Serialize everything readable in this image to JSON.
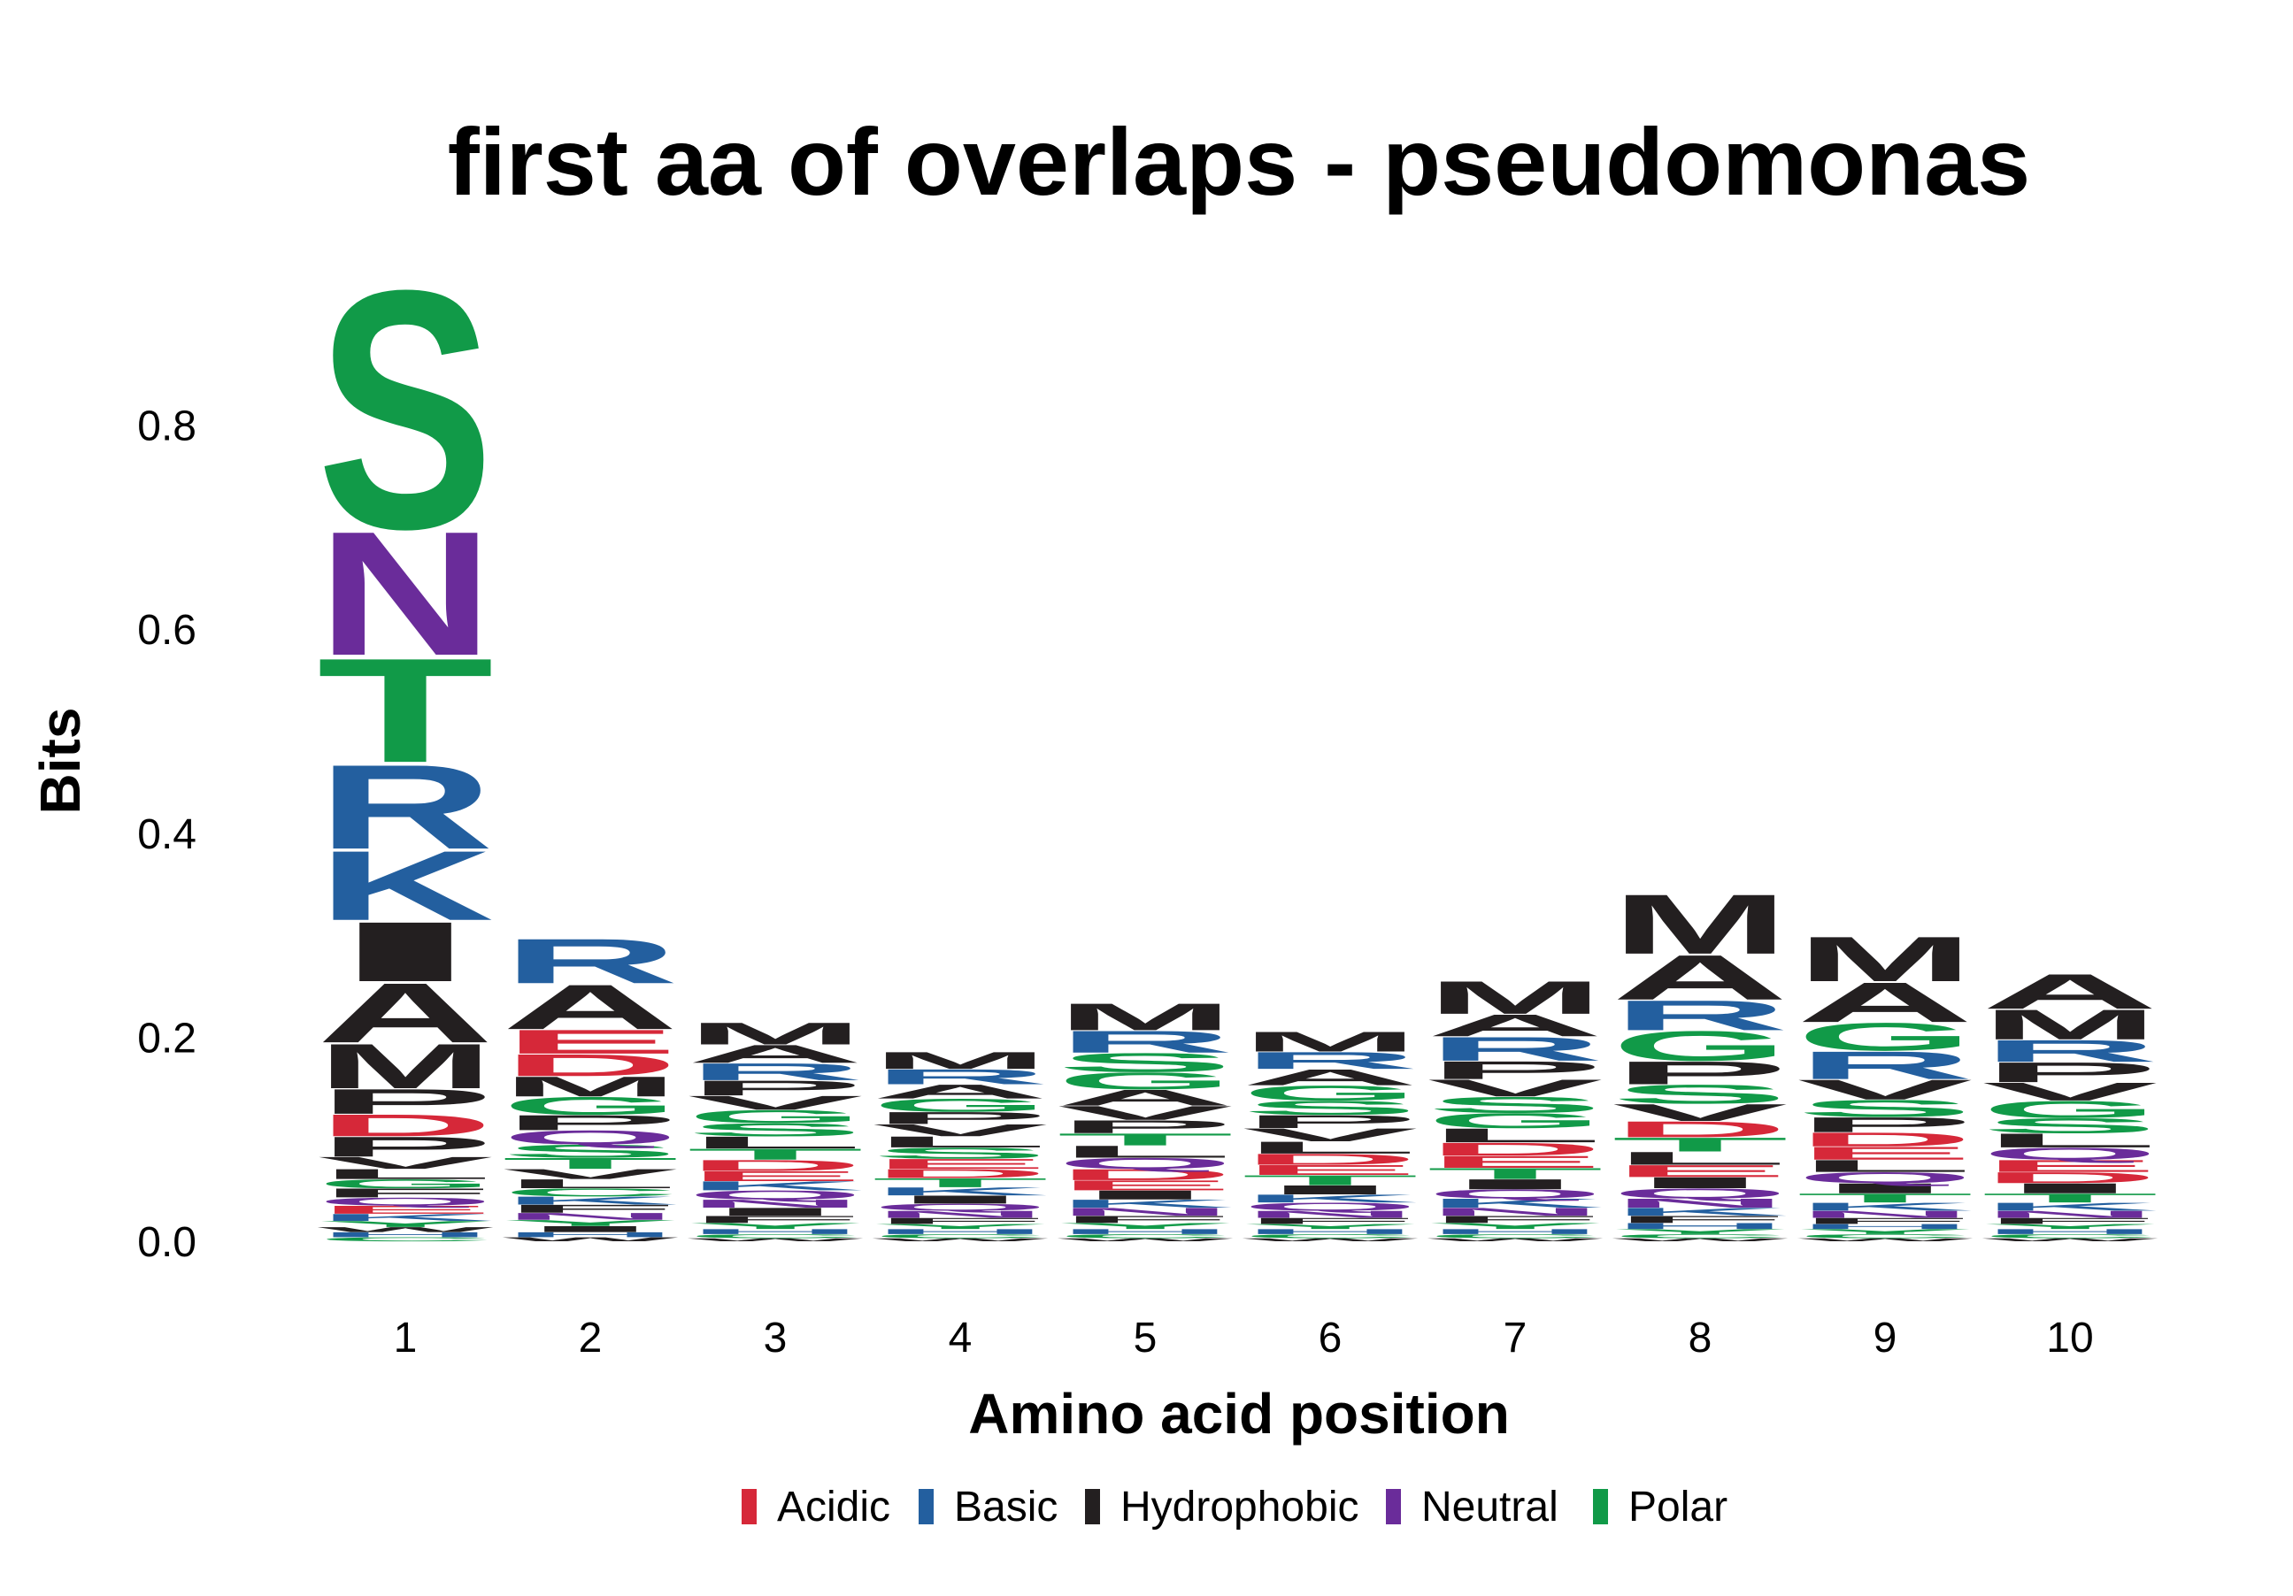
{
  "chart_data": {
    "type": "sequence-logo",
    "title": "first aa of overlaps - pseudomonas",
    "xlabel": "Amino acid position",
    "ylabel": "Bits",
    "ylim": [
      0,
      0.92
    ],
    "yticks": [
      0.0,
      0.2,
      0.4,
      0.6,
      0.8
    ],
    "ytick_labels": [
      "0.0",
      "0.2",
      "0.4",
      "0.6",
      "0.8"
    ],
    "categories": [
      "1",
      "2",
      "3",
      "4",
      "5",
      "6",
      "7",
      "8",
      "9",
      "10"
    ],
    "legend_position": "bottom",
    "legend": [
      {
        "name": "Acidic",
        "color": "#d62839"
      },
      {
        "name": "Basic",
        "color": "#235f9f"
      },
      {
        "name": "Hydrophobic",
        "color": "#231f20"
      },
      {
        "name": "Neutral",
        "color": "#6a2c9a"
      },
      {
        "name": "Polar",
        "color": "#119a48"
      }
    ],
    "group_colors": {
      "Acidic": "#d62839",
      "Basic": "#235f9f",
      "Hydrophobic": "#231f20",
      "Neutral": "#6a2c9a",
      "Polar": "#119a48"
    },
    "aa_groups": {
      "D": "Acidic",
      "E": "Acidic",
      "K": "Basic",
      "R": "Basic",
      "H": "Basic",
      "A": "Hydrophobic",
      "V": "Hydrophobic",
      "L": "Hydrophobic",
      "I": "Hydrophobic",
      "P": "Hydrophobic",
      "F": "Hydrophobic",
      "M": "Hydrophobic",
      "W": "Hydrophobic",
      "Q": "Neutral",
      "N": "Neutral",
      "S": "Polar",
      "T": "Polar",
      "G": "Polar",
      "Y": "Polar",
      "C": "Polar"
    },
    "positions": [
      {
        "position": 1,
        "letters": [
          {
            "aa": "C",
            "bits": 0.004
          },
          {
            "aa": "H",
            "bits": 0.005
          },
          {
            "aa": "W",
            "bits": 0.005
          },
          {
            "aa": "Y",
            "bits": 0.006
          },
          {
            "aa": "K",
            "bits": 0.007
          },
          {
            "aa": "E",
            "bits": 0.008
          },
          {
            "aa": "Q",
            "bits": 0.008
          },
          {
            "aa": "F",
            "bits": 0.009
          },
          {
            "aa": "G",
            "bits": 0.009
          },
          {
            "aa": "L",
            "bits": 0.01
          },
          {
            "aa": "V",
            "bits": 0.012
          },
          {
            "aa": "E",
            "bits": 0.0
          },
          {
            "aa": "P",
            "bits": 0.02
          },
          {
            "aa": "D",
            "bits": 0.022
          },
          {
            "aa": "P",
            "bits": 0.025
          },
          {
            "aa": "M",
            "bits": 0.045
          },
          {
            "aa": "A",
            "bits": 0.06
          },
          {
            "aa": "I",
            "bits": 0.06
          },
          {
            "aa": "K",
            "bits": 0.07
          },
          {
            "aa": "R",
            "bits": 0.085
          },
          {
            "aa": "T",
            "bits": 0.105
          },
          {
            "aa": "N",
            "bits": 0.125
          },
          {
            "aa": "S",
            "bits": 0.24
          }
        ]
      },
      {
        "position": 2,
        "letters": [
          {
            "aa": "W",
            "bits": 0.004
          },
          {
            "aa": "H",
            "bits": 0.005
          },
          {
            "aa": "I",
            "bits": 0.006
          },
          {
            "aa": "Y",
            "bits": 0.006
          },
          {
            "aa": "N",
            "bits": 0.007
          },
          {
            "aa": "F",
            "bits": 0.008
          },
          {
            "aa": "K",
            "bits": 0.008
          },
          {
            "aa": "C",
            "bits": 0.008
          },
          {
            "aa": "L",
            "bits": 0.009
          },
          {
            "aa": "V",
            "bits": 0.01
          },
          {
            "aa": "T",
            "bits": 0.011
          },
          {
            "aa": "S",
            "bits": 0.013
          },
          {
            "aa": "Q",
            "bits": 0.014
          },
          {
            "aa": "P",
            "bits": 0.015
          },
          {
            "aa": "G",
            "bits": 0.018
          },
          {
            "aa": "M",
            "bits": 0.02
          },
          {
            "aa": "D",
            "bits": 0.022
          },
          {
            "aa": "E",
            "bits": 0.024
          },
          {
            "aa": "A",
            "bits": 0.045
          },
          {
            "aa": "R",
            "bits": 0.045
          }
        ]
      },
      {
        "position": 3,
        "letters": [
          {
            "aa": "W",
            "bits": 0.003
          },
          {
            "aa": "C",
            "bits": 0.004
          },
          {
            "aa": "H",
            "bits": 0.005
          },
          {
            "aa": "Y",
            "bits": 0.006
          },
          {
            "aa": "F",
            "bits": 0.007
          },
          {
            "aa": "I",
            "bits": 0.008
          },
          {
            "aa": "N",
            "bits": 0.008
          },
          {
            "aa": "Q",
            "bits": 0.009
          },
          {
            "aa": "K",
            "bits": 0.009
          },
          {
            "aa": "E",
            "bits": 0.01
          },
          {
            "aa": "D",
            "bits": 0.011
          },
          {
            "aa": "T",
            "bits": 0.011
          },
          {
            "aa": "L",
            "bits": 0.012
          },
          {
            "aa": "S",
            "bits": 0.013
          },
          {
            "aa": "G",
            "bits": 0.013
          },
          {
            "aa": "V",
            "bits": 0.014
          },
          {
            "aa": "P",
            "bits": 0.015
          },
          {
            "aa": "R",
            "bits": 0.017
          },
          {
            "aa": "A",
            "bits": 0.018
          },
          {
            "aa": "M",
            "bits": 0.022
          }
        ]
      },
      {
        "position": 4,
        "letters": [
          {
            "aa": "W",
            "bits": 0.003
          },
          {
            "aa": "C",
            "bits": 0.004
          },
          {
            "aa": "H",
            "bits": 0.005
          },
          {
            "aa": "Y",
            "bits": 0.005
          },
          {
            "aa": "F",
            "bits": 0.006
          },
          {
            "aa": "N",
            "bits": 0.007
          },
          {
            "aa": "Q",
            "bits": 0.007
          },
          {
            "aa": "I",
            "bits": 0.008
          },
          {
            "aa": "K",
            "bits": 0.008
          },
          {
            "aa": "T",
            "bits": 0.009
          },
          {
            "aa": "D",
            "bits": 0.009
          },
          {
            "aa": "E",
            "bits": 0.01
          },
          {
            "aa": "S",
            "bits": 0.011
          },
          {
            "aa": "L",
            "bits": 0.011
          },
          {
            "aa": "V",
            "bits": 0.012
          },
          {
            "aa": "P",
            "bits": 0.012
          },
          {
            "aa": "G",
            "bits": 0.013
          },
          {
            "aa": "A",
            "bits": 0.014
          },
          {
            "aa": "R",
            "bits": 0.015
          },
          {
            "aa": "M",
            "bits": 0.017
          }
        ]
      },
      {
        "position": 5,
        "letters": [
          {
            "aa": "W",
            "bits": 0.003
          },
          {
            "aa": "C",
            "bits": 0.004
          },
          {
            "aa": "H",
            "bits": 0.005
          },
          {
            "aa": "Y",
            "bits": 0.006
          },
          {
            "aa": "F",
            "bits": 0.007
          },
          {
            "aa": "N",
            "bits": 0.008
          },
          {
            "aa": "K",
            "bits": 0.008
          },
          {
            "aa": "I",
            "bits": 0.009
          },
          {
            "aa": "E",
            "bits": 0.01
          },
          {
            "aa": "D",
            "bits": 0.011
          },
          {
            "aa": "Q",
            "bits": 0.011
          },
          {
            "aa": "L",
            "bits": 0.012
          },
          {
            "aa": "T",
            "bits": 0.012
          },
          {
            "aa": "P",
            "bits": 0.013
          },
          {
            "aa": "V",
            "bits": 0.014
          },
          {
            "aa": "A",
            "bits": 0.016
          },
          {
            "aa": "G",
            "bits": 0.017
          },
          {
            "aa": "S",
            "bits": 0.019
          },
          {
            "aa": "R",
            "bits": 0.022
          },
          {
            "aa": "M",
            "bits": 0.027
          }
        ]
      },
      {
        "position": 6,
        "letters": [
          {
            "aa": "W",
            "bits": 0.003
          },
          {
            "aa": "C",
            "bits": 0.004
          },
          {
            "aa": "H",
            "bits": 0.005
          },
          {
            "aa": "Y",
            "bits": 0.005
          },
          {
            "aa": "F",
            "bits": 0.006
          },
          {
            "aa": "N",
            "bits": 0.007
          },
          {
            "aa": "Q",
            "bits": 0.008
          },
          {
            "aa": "K",
            "bits": 0.008
          },
          {
            "aa": "I",
            "bits": 0.009
          },
          {
            "aa": "T",
            "bits": 0.01
          },
          {
            "aa": "E",
            "bits": 0.01
          },
          {
            "aa": "D",
            "bits": 0.011
          },
          {
            "aa": "L",
            "bits": 0.012
          },
          {
            "aa": "V",
            "bits": 0.013
          },
          {
            "aa": "P",
            "bits": 0.013
          },
          {
            "aa": "S",
            "bits": 0.014
          },
          {
            "aa": "G",
            "bits": 0.015
          },
          {
            "aa": "A",
            "bits": 0.016
          },
          {
            "aa": "R",
            "bits": 0.017
          },
          {
            "aa": "M",
            "bits": 0.02
          }
        ]
      },
      {
        "position": 7,
        "letters": [
          {
            "aa": "W",
            "bits": 0.003
          },
          {
            "aa": "C",
            "bits": 0.004
          },
          {
            "aa": "H",
            "bits": 0.005
          },
          {
            "aa": "Y",
            "bits": 0.006
          },
          {
            "aa": "F",
            "bits": 0.007
          },
          {
            "aa": "N",
            "bits": 0.008
          },
          {
            "aa": "K",
            "bits": 0.009
          },
          {
            "aa": "Q",
            "bits": 0.009
          },
          {
            "aa": "I",
            "bits": 0.01
          },
          {
            "aa": "T",
            "bits": 0.011
          },
          {
            "aa": "E",
            "bits": 0.012
          },
          {
            "aa": "D",
            "bits": 0.013
          },
          {
            "aa": "L",
            "bits": 0.014
          },
          {
            "aa": "G",
            "bits": 0.015
          },
          {
            "aa": "S",
            "bits": 0.016
          },
          {
            "aa": "V",
            "bits": 0.017
          },
          {
            "aa": "P",
            "bits": 0.018
          },
          {
            "aa": "R",
            "bits": 0.024
          },
          {
            "aa": "A",
            "bits": 0.022
          },
          {
            "aa": "M",
            "bits": 0.033
          }
        ]
      },
      {
        "position": 8,
        "letters": [
          {
            "aa": "W",
            "bits": 0.003
          },
          {
            "aa": "C",
            "bits": 0.004
          },
          {
            "aa": "Y",
            "bits": 0.005
          },
          {
            "aa": "H",
            "bits": 0.006
          },
          {
            "aa": "F",
            "bits": 0.007
          },
          {
            "aa": "K",
            "bits": 0.008
          },
          {
            "aa": "N",
            "bits": 0.009
          },
          {
            "aa": "Q",
            "bits": 0.01
          },
          {
            "aa": "I",
            "bits": 0.011
          },
          {
            "aa": "E",
            "bits": 0.012
          },
          {
            "aa": "L",
            "bits": 0.013
          },
          {
            "aa": "T",
            "bits": 0.014
          },
          {
            "aa": "D",
            "bits": 0.016
          },
          {
            "aa": "V",
            "bits": 0.017
          },
          {
            "aa": "S",
            "bits": 0.019
          },
          {
            "aa": "P",
            "bits": 0.023
          },
          {
            "aa": "G",
            "bits": 0.03
          },
          {
            "aa": "R",
            "bits": 0.03
          },
          {
            "aa": "A",
            "bits": 0.045
          },
          {
            "aa": "M",
            "bits": 0.06
          }
        ]
      },
      {
        "position": 9,
        "letters": [
          {
            "aa": "W",
            "bits": 0.003
          },
          {
            "aa": "C",
            "bits": 0.004
          },
          {
            "aa": "Y",
            "bits": 0.005
          },
          {
            "aa": "H",
            "bits": 0.005
          },
          {
            "aa": "F",
            "bits": 0.006
          },
          {
            "aa": "N",
            "bits": 0.007
          },
          {
            "aa": "K",
            "bits": 0.008
          },
          {
            "aa": "T",
            "bits": 0.009
          },
          {
            "aa": "I",
            "bits": 0.01
          },
          {
            "aa": "Q",
            "bits": 0.011
          },
          {
            "aa": "L",
            "bits": 0.012
          },
          {
            "aa": "E",
            "bits": 0.013
          },
          {
            "aa": "D",
            "bits": 0.014
          },
          {
            "aa": "P",
            "bits": 0.015
          },
          {
            "aa": "S",
            "bits": 0.017
          },
          {
            "aa": "V",
            "bits": 0.02
          },
          {
            "aa": "R",
            "bits": 0.028
          },
          {
            "aa": "G",
            "bits": 0.028
          },
          {
            "aa": "A",
            "bits": 0.04
          },
          {
            "aa": "M",
            "bits": 0.045
          }
        ]
      },
      {
        "position": 10,
        "letters": [
          {
            "aa": "W",
            "bits": 0.003
          },
          {
            "aa": "C",
            "bits": 0.004
          },
          {
            "aa": "H",
            "bits": 0.005
          },
          {
            "aa": "Y",
            "bits": 0.005
          },
          {
            "aa": "F",
            "bits": 0.006
          },
          {
            "aa": "N",
            "bits": 0.007
          },
          {
            "aa": "K",
            "bits": 0.008
          },
          {
            "aa": "T",
            "bits": 0.009
          },
          {
            "aa": "I",
            "bits": 0.01
          },
          {
            "aa": "D",
            "bits": 0.011
          },
          {
            "aa": "E",
            "bits": 0.012
          },
          {
            "aa": "Q",
            "bits": 0.012
          },
          {
            "aa": "L",
            "bits": 0.014
          },
          {
            "aa": "S",
            "bits": 0.015
          },
          {
            "aa": "G",
            "bits": 0.017
          },
          {
            "aa": "V",
            "bits": 0.018
          },
          {
            "aa": "P",
            "bits": 0.02
          },
          {
            "aa": "R",
            "bits": 0.022
          },
          {
            "aa": "M",
            "bits": 0.03
          },
          {
            "aa": "A",
            "bits": 0.035
          }
        ]
      }
    ]
  }
}
